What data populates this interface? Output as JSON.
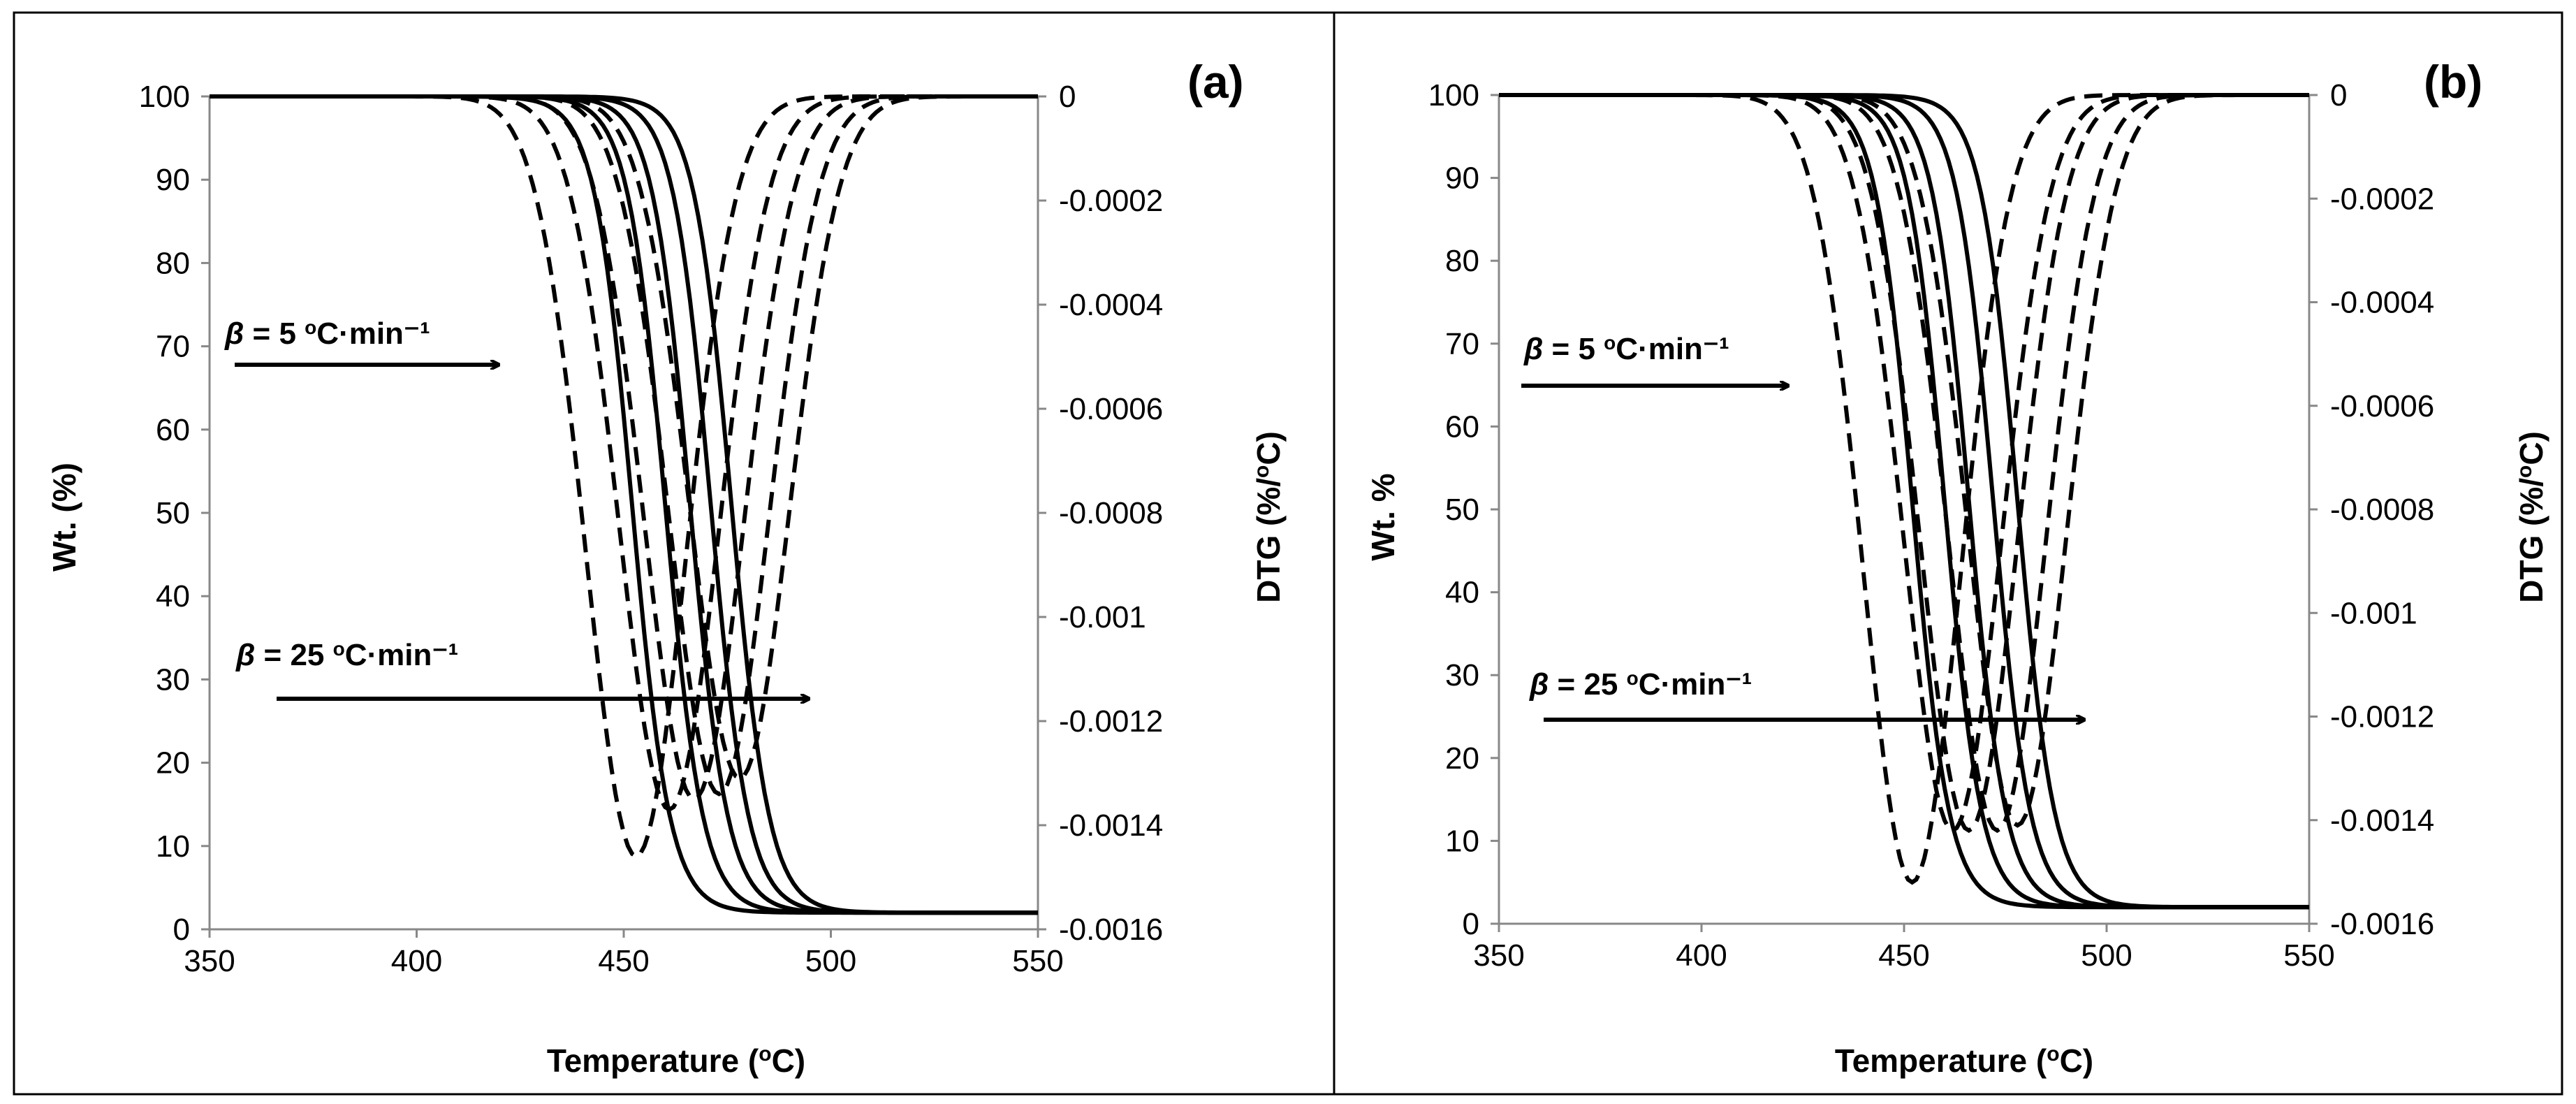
{
  "chart_data": [
    {
      "type": "line",
      "panel_label": "(a)",
      "xlabel": "Temperature (oC)",
      "xlabel_main": "Temperature (",
      "xlabel_sup": "o",
      "xlabel_end": "C)",
      "ylabel": "Wt. (%)",
      "y2label": "DTG (%/oC)",
      "y2label_main": "DTG (%/",
      "y2label_sup": "o",
      "y2label_end": "C)",
      "xlim": [
        350,
        550
      ],
      "ylim": [
        0,
        100
      ],
      "y2lim": [
        -0.0016,
        0
      ],
      "x_ticks": [
        "350",
        "400",
        "450",
        "500",
        "550"
      ],
      "y_ticks": [
        "0",
        "10",
        "20",
        "30",
        "40",
        "50",
        "60",
        "70",
        "80",
        "90",
        "100"
      ],
      "y2_ticks": [
        "-0.0016",
        "-0.0014",
        "-0.0012",
        "-0.001",
        "-0.0008",
        "-0.0006",
        "-0.0004",
        "-0.0002",
        "0"
      ],
      "grid": false,
      "annotations": [
        {
          "text_beta": "β",
          "text_mid": " = 5 ",
          "text_sup": "o",
          "text_end": "C·min⁻¹",
          "text": "β = 5 oC·min⁻¹"
        },
        {
          "text_beta": "β",
          "text_mid": " = 25 ",
          "text_sup": "o",
          "text_end": "C·min⁻¹",
          "text": "β = 25 oC·min⁻¹"
        }
      ],
      "tg_series": [
        {
          "Tm": 452,
          "w": 20
        },
        {
          "Tm": 460,
          "w": 20
        },
        {
          "Tm": 466,
          "w": 20
        },
        {
          "Tm": 471,
          "w": 20
        },
        {
          "Tm": 476,
          "w": 20
        }
      ],
      "tg_residue": 2,
      "dtg_series": [
        {
          "peak_T": 453,
          "peak_value": -0.00146,
          "w_left": 17,
          "w_right": 17
        },
        {
          "peak_T": 461,
          "peak_value": -0.00137,
          "w_left": 17,
          "w_right": 17
        },
        {
          "peak_T": 467,
          "peak_value": -0.00135,
          "w_left": 17,
          "w_right": 17
        },
        {
          "peak_T": 473,
          "peak_value": -0.00134,
          "w_left": 17,
          "w_right": 17
        },
        {
          "peak_T": 478,
          "peak_value": -0.00131,
          "w_left": 17,
          "w_right": 17
        }
      ]
    },
    {
      "type": "line",
      "panel_label": "(b)",
      "xlabel": "Temperature (oC)",
      "xlabel_main": "Temperature (",
      "xlabel_sup": "o",
      "xlabel_end": "C)",
      "ylabel": "Wt. %",
      "y2label": "DTG (%/oC)",
      "y2label_main": "DTG (%/",
      "y2label_sup": "o",
      "y2label_end": "C)",
      "xlim": [
        350,
        550
      ],
      "ylim": [
        0,
        100
      ],
      "y2lim": [
        -0.0016,
        0
      ],
      "x_ticks": [
        "350",
        "400",
        "450",
        "500",
        "550"
      ],
      "y_ticks": [
        "0",
        "10",
        "20",
        "30",
        "40",
        "50",
        "60",
        "70",
        "80",
        "90",
        "100"
      ],
      "y2_ticks": [
        "-0.0016",
        "-0.0014",
        "-0.0012",
        "-0.001",
        "-0.0008",
        "-0.0006",
        "-0.0004",
        "-0.0002",
        "0"
      ],
      "grid": false,
      "annotations": [
        {
          "text_beta": "β",
          "text_mid": " = 5 ",
          "text_sup": "o",
          "text_end": "C·min⁻¹",
          "text": "β = 5 oC·min⁻¹"
        },
        {
          "text_beta": "β",
          "text_mid": " = 25 ",
          "text_sup": "o",
          "text_end": "C·min⁻¹",
          "text": "β = 25 oC·min⁻¹"
        }
      ],
      "tg_series": [
        {
          "Tm": 452,
          "w": 20
        },
        {
          "Tm": 460,
          "w": 20
        },
        {
          "Tm": 466,
          "w": 20
        },
        {
          "Tm": 472,
          "w": 20
        },
        {
          "Tm": 478,
          "w": 20
        }
      ],
      "tg_residue": 2,
      "dtg_series": [
        {
          "peak_T": 452,
          "peak_value": -0.00152,
          "w_left": 17,
          "w_right": 17
        },
        {
          "peak_T": 462,
          "peak_value": -0.00142,
          "w_left": 17,
          "w_right": 17
        },
        {
          "peak_T": 466,
          "peak_value": -0.00142,
          "w_left": 17,
          "w_right": 17
        },
        {
          "peak_T": 473,
          "peak_value": -0.00142,
          "w_left": 17,
          "w_right": 17
        },
        {
          "peak_T": 478,
          "peak_value": -0.00141,
          "w_left": 17,
          "w_right": 17
        }
      ]
    }
  ]
}
